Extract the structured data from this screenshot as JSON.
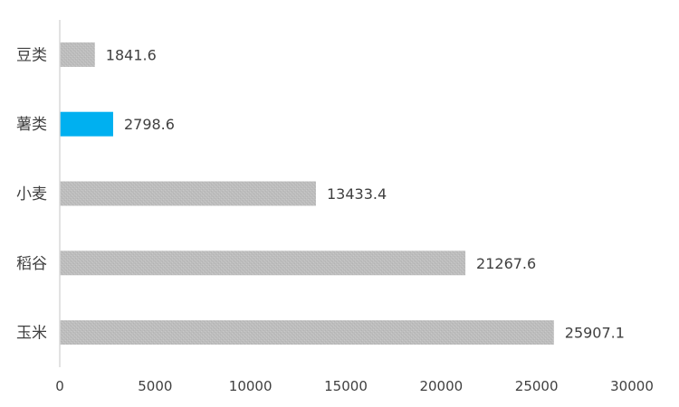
{
  "chart_data": {
    "type": "bar",
    "orientation": "horizontal",
    "categories": [
      "豆类",
      "薯类",
      "小麦",
      "稻谷",
      "玉米"
    ],
    "values": [
      1841.6,
      2798.6,
      13433.4,
      21267.6,
      25907.1
    ],
    "value_labels": [
      "1841.6",
      "2798.6",
      "13433.4",
      "21267.6",
      "25907.1"
    ],
    "highlight_index": 1,
    "xlim": [
      0,
      30000
    ],
    "xticks": [
      0,
      5000,
      10000,
      15000,
      20000,
      25000,
      30000
    ],
    "xtick_labels": [
      "0",
      "5000",
      "10000",
      "15000",
      "20000",
      "25000",
      "30000"
    ],
    "grid": false,
    "legend": "none",
    "colors": {
      "bar": "#bfbfbf",
      "highlight": "#00b0f0",
      "axis": "#d9d9d9",
      "text": "#404040"
    }
  }
}
